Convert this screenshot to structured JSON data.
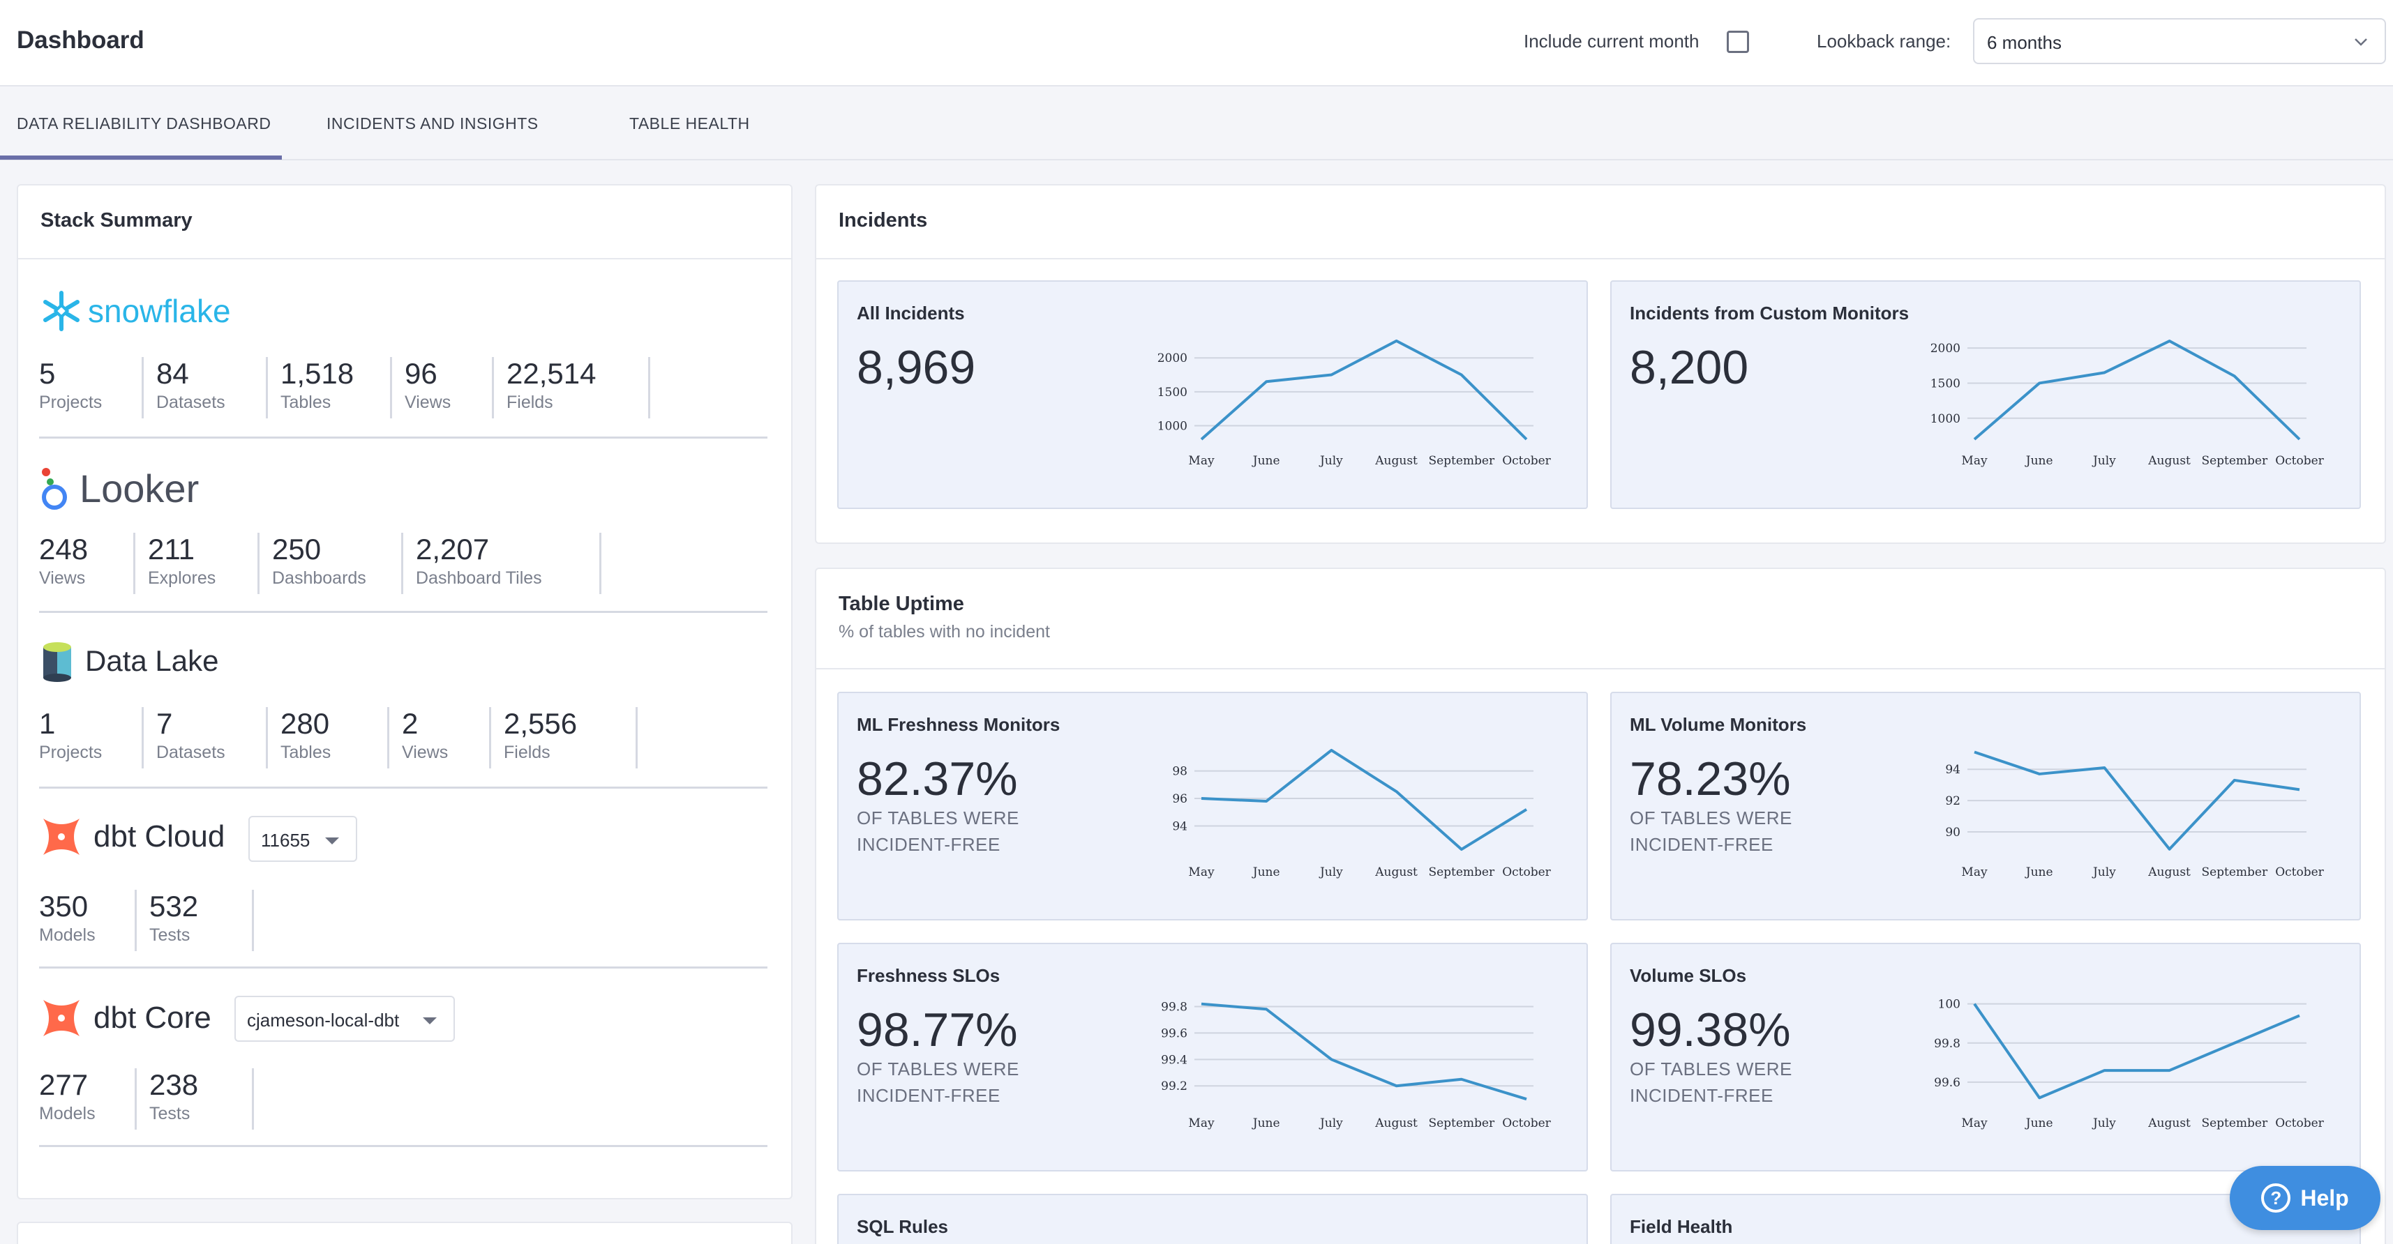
{
  "header": {
    "title": "Dashboard",
    "include_current_month_label": "Include current month",
    "include_current_month_checked": false,
    "lookback_label": "Lookback range:",
    "lookback_value": "6 months"
  },
  "tabs": [
    {
      "label": "DATA RELIABILITY DASHBOARD",
      "active": true
    },
    {
      "label": "INCIDENTS AND INSIGHTS",
      "active": false
    },
    {
      "label": "TABLE HEALTH",
      "active": false
    }
  ],
  "stack_summary": {
    "title": "Stack Summary",
    "sources": [
      {
        "name": "snowflake",
        "icon": "snowflake-logo-icon",
        "stats": [
          {
            "value": "5",
            "label": "Projects"
          },
          {
            "value": "84",
            "label": "Datasets"
          },
          {
            "value": "1,518",
            "label": "Tables"
          },
          {
            "value": "96",
            "label": "Views"
          },
          {
            "value": "22,514",
            "label": "Fields"
          }
        ]
      },
      {
        "name": "Looker",
        "icon": "looker-logo-icon",
        "stats": [
          {
            "value": "248",
            "label": "Views"
          },
          {
            "value": "211",
            "label": "Explores"
          },
          {
            "value": "250",
            "label": "Dashboards"
          },
          {
            "value": "2,207",
            "label": "Dashboard Tiles"
          }
        ]
      },
      {
        "name": "Data Lake",
        "icon": "data-lake-logo-icon",
        "stats": [
          {
            "value": "1",
            "label": "Projects"
          },
          {
            "value": "7",
            "label": "Datasets"
          },
          {
            "value": "280",
            "label": "Tables"
          },
          {
            "value": "2",
            "label": "Views"
          },
          {
            "value": "2,556",
            "label": "Fields"
          }
        ]
      },
      {
        "name": "dbt Cloud",
        "icon": "dbt-logo-icon",
        "selector": "11655",
        "stats": [
          {
            "value": "350",
            "label": "Models"
          },
          {
            "value": "532",
            "label": "Tests"
          }
        ]
      },
      {
        "name": "dbt Core",
        "icon": "dbt-logo-icon",
        "selector": "cjameson-local-dbt",
        "stats": [
          {
            "value": "277",
            "label": "Models"
          },
          {
            "value": "238",
            "label": "Tests"
          }
        ]
      }
    ]
  },
  "incidents": {
    "title": "Incidents",
    "panels": [
      {
        "title": "All Incidents",
        "value": "8,969"
      },
      {
        "title": "Incidents from Custom Monitors",
        "value": "8,200"
      }
    ]
  },
  "table_uptime": {
    "title": "Table Uptime",
    "subtitle": "% of tables with no incident",
    "note": "OF TABLES WERE INCIDENT-FREE",
    "panels": [
      {
        "title": "ML Freshness Monitors",
        "value": "82.37%"
      },
      {
        "title": "ML Volume Monitors",
        "value": "78.23%"
      },
      {
        "title": "Freshness SLOs",
        "value": "98.77%"
      },
      {
        "title": "Volume SLOs",
        "value": "99.38%"
      }
    ],
    "next_panels": [
      {
        "title": "SQL Rules"
      },
      {
        "title": "Field Health"
      }
    ]
  },
  "chart_data": [
    {
      "type": "line",
      "id": "all_incidents",
      "x": [
        "May",
        "June",
        "July",
        "August",
        "September",
        "October"
      ],
      "values": [
        800,
        1650,
        1750,
        2250,
        1750,
        800
      ],
      "yticks": [
        "1000",
        "1500",
        "2000"
      ],
      "ylim": [
        800,
        2300
      ]
    },
    {
      "type": "line",
      "id": "custom_monitor_incidents",
      "x": [
        "May",
        "June",
        "July",
        "August",
        "September",
        "October"
      ],
      "values": [
        700,
        1500,
        1650,
        2100,
        1600,
        700
      ],
      "yticks": [
        "1000",
        "1500",
        "2000"
      ],
      "ylim": [
        700,
        2150
      ]
    },
    {
      "type": "line",
      "id": "ml_freshness",
      "x": [
        "May",
        "June",
        "July",
        "August",
        "September",
        "October"
      ],
      "values": [
        96.0,
        95.8,
        99.5,
        96.5,
        92.3,
        95.2
      ],
      "yticks": [
        "94",
        "96",
        "98"
      ],
      "ylim": [
        92.2,
        99.6
      ]
    },
    {
      "type": "line",
      "id": "ml_volume",
      "x": [
        "May",
        "June",
        "July",
        "August",
        "September",
        "October"
      ],
      "values": [
        95.1,
        93.7,
        94.1,
        88.9,
        93.3,
        92.7
      ],
      "yticks": [
        "90",
        "92",
        "94"
      ],
      "ylim": [
        88.8,
        95.3
      ]
    },
    {
      "type": "line",
      "id": "freshness_slos",
      "x": [
        "May",
        "June",
        "July",
        "August",
        "September",
        "October"
      ],
      "values": [
        99.82,
        99.78,
        99.4,
        99.2,
        99.25,
        99.1
      ],
      "yticks": [
        "99.2",
        "99.4",
        "99.6",
        "99.8"
      ],
      "ylim": [
        99.08,
        99.85
      ]
    },
    {
      "type": "line",
      "id": "volume_slos",
      "x": [
        "May",
        "June",
        "July",
        "August",
        "September",
        "October"
      ],
      "values": [
        100.0,
        99.52,
        99.66,
        99.66,
        99.8,
        99.94
      ],
      "yticks": [
        "99.6",
        "99.8",
        "100"
      ],
      "ylim": [
        99.5,
        100.02
      ]
    }
  ],
  "help": {
    "label": "Help"
  },
  "colors": {
    "line": "#3b92c9",
    "panel_bg": "#eef2fb",
    "accent": "#6a6fa8",
    "help_bg": "#3f8ee0"
  }
}
